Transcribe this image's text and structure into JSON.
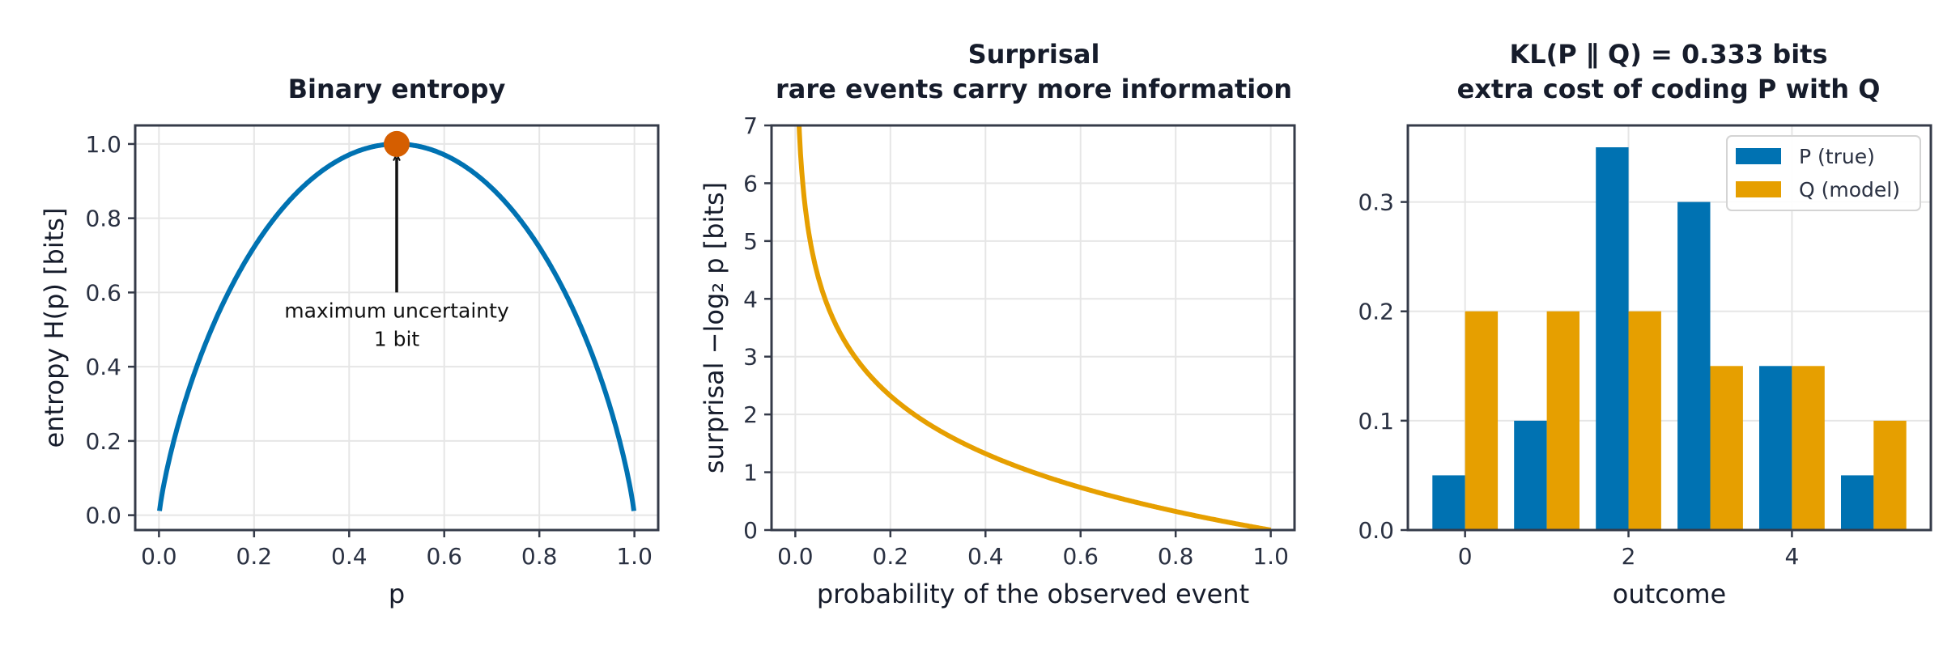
{
  "colors": {
    "blue": "#0072b2",
    "orange": "#e69f00",
    "marker": "#d55e00",
    "arrow": "#111111"
  },
  "chart_data": [
    {
      "type": "line",
      "title": "Binary entropy",
      "xlabel": "p",
      "ylabel": "entropy H(p)  [bits]",
      "xlim": [
        -0.05,
        1.05
      ],
      "ylim": [
        -0.04,
        1.05
      ],
      "xticks": [
        0.0,
        0.2,
        0.4,
        0.6,
        0.8,
        1.0
      ],
      "xtick_labels": [
        "0.0",
        "0.2",
        "0.4",
        "0.6",
        "0.8",
        "1.0"
      ],
      "yticks": [
        0.0,
        0.2,
        0.4,
        0.6,
        0.8,
        1.0
      ],
      "ytick_labels": [
        "0.0",
        "0.2",
        "0.4",
        "0.6",
        "0.8",
        "1.0"
      ],
      "grid": true,
      "function": "binary_entropy",
      "x_range": [
        0.001,
        0.999
      ],
      "series_color": "blue",
      "marker_point": {
        "x": 0.5,
        "y": 1.0,
        "color": "marker"
      },
      "annotation": {
        "lines": [
          "maximum uncertainty",
          "1 bit"
        ],
        "arrow_from": {
          "x": 0.5,
          "y": 0.6
        },
        "arrow_to": {
          "x": 0.5,
          "y": 0.99
        }
      }
    },
    {
      "type": "line",
      "title_lines": [
        "Surprisal",
        "rare events carry more information"
      ],
      "xlabel": "probability of the observed event",
      "ylabel": "surprisal −log₂ p  [bits]",
      "xlim": [
        -0.05,
        1.05
      ],
      "ylim": [
        0,
        7
      ],
      "xticks": [
        0.0,
        0.2,
        0.4,
        0.6,
        0.8,
        1.0
      ],
      "xtick_labels": [
        "0.0",
        "0.2",
        "0.4",
        "0.6",
        "0.8",
        "1.0"
      ],
      "yticks": [
        0,
        1,
        2,
        3,
        4,
        5,
        6,
        7
      ],
      "ytick_labels": [
        "0",
        "1",
        "2",
        "3",
        "4",
        "5",
        "6",
        "7"
      ],
      "grid": true,
      "function": "surprisal",
      "x_range": [
        0.001,
        1.0
      ],
      "series_color": "orange"
    },
    {
      "type": "bar",
      "title_lines": [
        "KL(P ∥ Q) = 0.333 bits",
        "extra cost of coding P with Q"
      ],
      "xlabel": "outcome",
      "ylabel": "",
      "categories": [
        0,
        1,
        2,
        3,
        4,
        5
      ],
      "xlim": [
        -0.7,
        5.7
      ],
      "ylim": [
        0,
        0.37
      ],
      "xticks": [
        0,
        2,
        4
      ],
      "xtick_labels": [
        "0",
        "2",
        "4"
      ],
      "yticks": [
        0.0,
        0.1,
        0.2,
        0.3
      ],
      "ytick_labels": [
        "0.0",
        "0.1",
        "0.2",
        "0.3"
      ],
      "grid": true,
      "legend_position": "top-right",
      "series": [
        {
          "name": "P (true)",
          "values": [
            0.05,
            0.1,
            0.35,
            0.3,
            0.15,
            0.05
          ],
          "color": "blue"
        },
        {
          "name": "Q (model)",
          "values": [
            0.2,
            0.2,
            0.2,
            0.15,
            0.15,
            0.1
          ],
          "color": "orange"
        }
      ]
    }
  ]
}
